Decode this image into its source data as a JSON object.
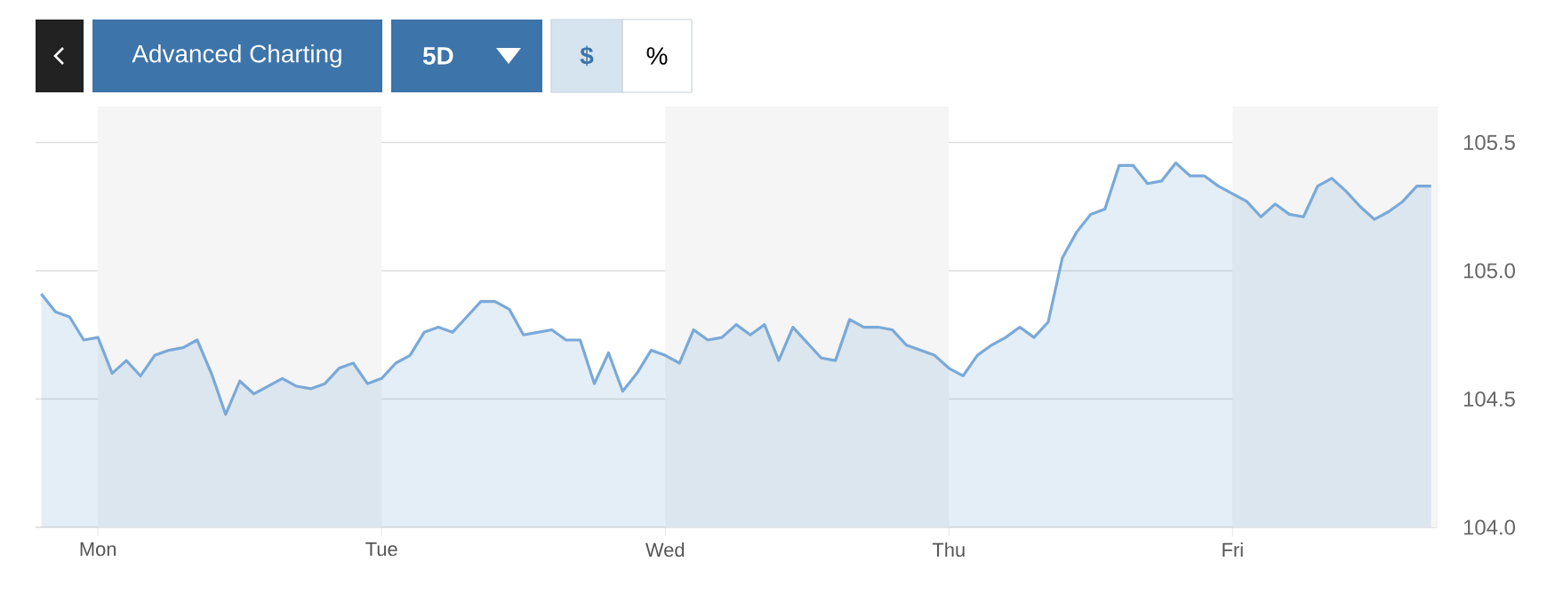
{
  "chart_data": {
    "type": "area",
    "annotations": [
      "Advanced Charting",
      "5D",
      "$",
      "%"
    ],
    "categories": [
      null,
      null,
      null,
      null,
      "Mon",
      null,
      null,
      null,
      null,
      null,
      null,
      null,
      null,
      null,
      null,
      null,
      null,
      null,
      null,
      null,
      null,
      null,
      null,
      null,
      "Tue",
      null,
      null,
      null,
      null,
      null,
      null,
      null,
      null,
      null,
      null,
      null,
      null,
      null,
      null,
      null,
      null,
      null,
      null,
      null,
      "Wed",
      null,
      null,
      null,
      null,
      null,
      null,
      null,
      null,
      null,
      null,
      null,
      null,
      null,
      null,
      null,
      null,
      null,
      null,
      null,
      "Thu",
      null,
      null,
      null,
      null,
      null,
      null,
      null,
      null,
      null,
      null,
      null,
      null,
      null,
      null,
      null,
      null,
      null,
      null,
      null,
      "Fri",
      null,
      null,
      null,
      null,
      null,
      null,
      null,
      null,
      null,
      null,
      null,
      null,
      null,
      null
    ],
    "series": [
      {
        "color": "#7aa9d8",
        "values": [
          104.91,
          104.84,
          104.82,
          104.73,
          104.74,
          104.6,
          104.65,
          104.59,
          104.67,
          104.69,
          104.7,
          104.73,
          104.6,
          104.44,
          104.57,
          104.52,
          104.55,
          104.58,
          104.55,
          104.54,
          104.56,
          104.62,
          104.64,
          104.56,
          104.58,
          104.64,
          104.67,
          104.76,
          104.78,
          104.76,
          104.82,
          104.88,
          104.88,
          104.85,
          104.75,
          104.76,
          104.77,
          104.73,
          104.73,
          104.56,
          104.68,
          104.53,
          104.6,
          104.69,
          104.67,
          104.64,
          104.77,
          104.73,
          104.74,
          104.79,
          104.75,
          104.79,
          104.65,
          104.78,
          104.72,
          104.66,
          104.65,
          104.81,
          104.78,
          104.78,
          104.77,
          104.71,
          104.69,
          104.67,
          104.62,
          104.59,
          104.67,
          104.71,
          104.74,
          104.78,
          104.74,
          104.8,
          105.05,
          105.15,
          105.22,
          105.24,
          105.41,
          105.41,
          105.34,
          105.35,
          105.42,
          105.37,
          105.37,
          105.33,
          105.3,
          105.27,
          105.21,
          105.26,
          105.22,
          105.21,
          105.33,
          105.36,
          105.31,
          105.25,
          105.2,
          105.23,
          105.27,
          105.33,
          105.33
        ]
      }
    ],
    "ylim": [
      104.0,
      105.64
    ],
    "yticks": [
      {
        "value": 104.0,
        "label": "104.0"
      },
      {
        "value": 104.5,
        "label": "104.5"
      },
      {
        "value": 105.0,
        "label": "105.0"
      },
      {
        "value": 105.5,
        "label": "105.5"
      }
    ],
    "bands": [
      {
        "axis": "x",
        "from": "Mon",
        "to": "Tue",
        "color": "#f5f5f5"
      },
      {
        "axis": "x",
        "from": "Wed",
        "to": "Thu",
        "color": "#f5f5f5"
      }
    ],
    "grid": "y"
  }
}
